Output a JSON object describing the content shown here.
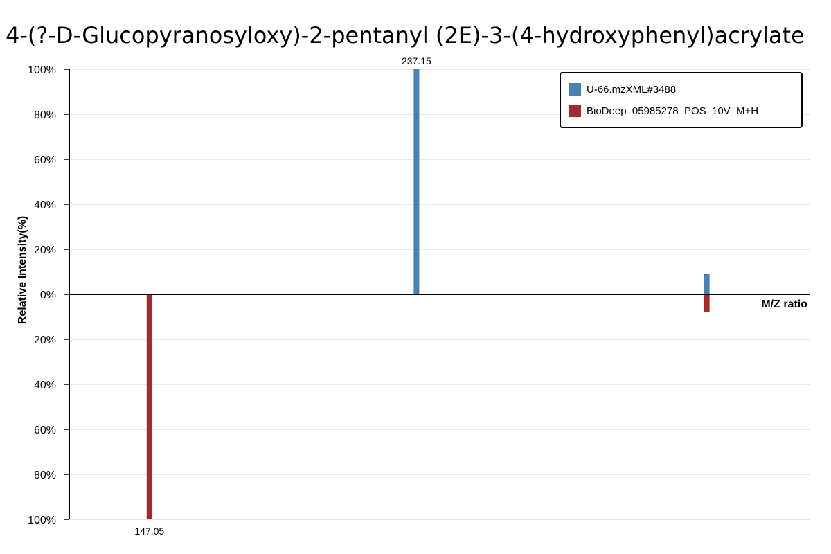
{
  "chart_data": {
    "type": "bar",
    "title": "4-(?-D-Glucopyranosyloxy)-2-pentanyl  (2E)-3-(4-hydroxyphenyl)acrylate",
    "xlabel": "M/Z ratio",
    "ylabel": "Relative Intensity(%)",
    "xlim": [
      120,
      370
    ],
    "ylim": [
      -100,
      100
    ],
    "yticks": [
      {
        "value": 100,
        "label": "100%"
      },
      {
        "value": 80,
        "label": "80%"
      },
      {
        "value": 60,
        "label": "60%"
      },
      {
        "value": 40,
        "label": "40%"
      },
      {
        "value": 20,
        "label": "20%"
      },
      {
        "value": 0,
        "label": "0%"
      },
      {
        "value": -20,
        "label": "20%"
      },
      {
        "value": -40,
        "label": "40%"
      },
      {
        "value": -60,
        "label": "60%"
      },
      {
        "value": -80,
        "label": "80%"
      },
      {
        "value": -100,
        "label": "100%"
      }
    ],
    "grid": true,
    "legend_position": "top-right",
    "series": [
      {
        "name": "U-66.mzXML#3488",
        "color": "#4682b4",
        "direction": "up",
        "peaks": [
          {
            "mz": 237.15,
            "intensity": 100,
            "label": "237.15"
          },
          {
            "mz": 335.1,
            "intensity": 9,
            "label": ""
          }
        ]
      },
      {
        "name": "BioDeep_05985278_POS_10V_M+H",
        "color": "#a52a2a",
        "direction": "down",
        "peaks": [
          {
            "mz": 147.05,
            "intensity": 100,
            "label": "147.05"
          },
          {
            "mz": 335.1,
            "intensity": 8,
            "label": ""
          }
        ]
      }
    ]
  }
}
